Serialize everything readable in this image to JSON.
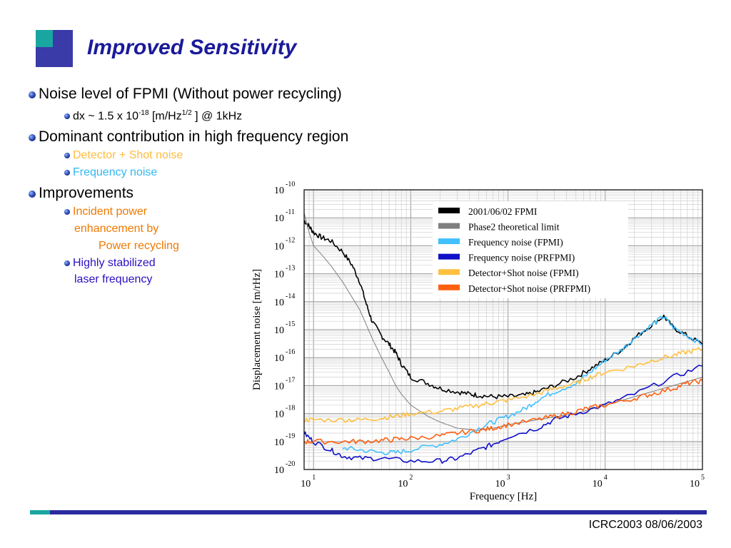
{
  "slide": {
    "title": "Improved Sensitivity",
    "footer": "ICRC2003 08/06/2003",
    "colors": {
      "title": "#1a1a9a",
      "logo_blue": "#3a3aa8",
      "logo_teal": "#1aa6a0",
      "orange_text": "#f07800",
      "cyan_text": "#28b4f0",
      "purple_text": "#2a10c0"
    }
  },
  "bullets": {
    "b1": "Noise level of FPMI (Without power recycling)",
    "b1_sub_pre": "dx ~ 1.5 x 10",
    "b1_sub_exp1": "-18",
    "b1_sub_mid": " [m/Hz",
    "b1_sub_exp2": "1/2",
    "b1_sub_post": " ] @ 1kHz",
    "b2": "Dominant contribution in high frequency region",
    "b2_sub1": "Detector + Shot noise",
    "b2_sub2": "Frequency noise",
    "b3": "Improvements",
    "b3_sub1_line1": "Incident power",
    "b3_sub1_line2": "enhancement by",
    "b3_sub1_line3": "Power recycling",
    "b3_sub2_line1": "Highly stabilized",
    "b3_sub2_line2": "laser frequency"
  },
  "chart_data": {
    "type": "line",
    "xscale": "log",
    "yscale": "log",
    "xlabel": "Frequency [Hz]",
    "ylabel": "Displacement noise [m/rHz]",
    "xlim": [
      8,
      100000
    ],
    "ylim": [
      1e-20,
      1e-10
    ],
    "x_ticks": [
      {
        "value": 10,
        "mantissa": "10",
        "exp": "1"
      },
      {
        "value": 100,
        "mantissa": "10",
        "exp": "2"
      },
      {
        "value": 1000,
        "mantissa": "10",
        "exp": "3"
      },
      {
        "value": 10000,
        "mantissa": "10",
        "exp": "4"
      },
      {
        "value": 100000,
        "mantissa": "10",
        "exp": "5"
      }
    ],
    "y_ticks": [
      {
        "value": 1e-10,
        "mantissa": "10",
        "exp": "-10"
      },
      {
        "value": 1e-11,
        "mantissa": "10",
        "exp": "-11"
      },
      {
        "value": 1e-12,
        "mantissa": "10",
        "exp": "-12"
      },
      {
        "value": 1e-13,
        "mantissa": "10",
        "exp": "-13"
      },
      {
        "value": 1e-14,
        "mantissa": "10",
        "exp": "-14"
      },
      {
        "value": 1e-15,
        "mantissa": "10",
        "exp": "-15"
      },
      {
        "value": 1e-16,
        "mantissa": "10",
        "exp": "-16"
      },
      {
        "value": 1e-17,
        "mantissa": "10",
        "exp": "-17"
      },
      {
        "value": 1e-18,
        "mantissa": "10",
        "exp": "-18"
      },
      {
        "value": 1e-19,
        "mantissa": "10",
        "exp": "-19"
      },
      {
        "value": 1e-20,
        "mantissa": "10",
        "exp": "-20"
      }
    ],
    "grid": true,
    "legend_position": "top-right",
    "series": [
      {
        "name": "2001/06/02 FPMI",
        "color": "#000000",
        "points": [
          [
            8,
            8e-12
          ],
          [
            9,
            5e-12
          ],
          [
            10,
            3e-12
          ],
          [
            12,
            2e-12
          ],
          [
            15,
            1.5e-12
          ],
          [
            20,
            6e-13
          ],
          [
            25,
            2e-13
          ],
          [
            30,
            5e-14
          ],
          [
            35,
            8e-15
          ],
          [
            40,
            2e-15
          ],
          [
            50,
            6e-16
          ],
          [
            60,
            3e-16
          ],
          [
            70,
            1.5e-16
          ],
          [
            80,
            6e-17
          ],
          [
            100,
            2e-17
          ],
          [
            150,
            1.2e-17
          ],
          [
            200,
            8e-18
          ],
          [
            300,
            6e-18
          ],
          [
            400,
            5e-18
          ],
          [
            500,
            4.5e-18
          ],
          [
            700,
            4e-18
          ],
          [
            1000,
            4e-18
          ],
          [
            1500,
            4.5e-18
          ],
          [
            2000,
            6e-18
          ],
          [
            3000,
            1e-17
          ],
          [
            5000,
            2e-17
          ],
          [
            7000,
            4e-17
          ],
          [
            10000,
            8e-17
          ],
          [
            15000,
            2e-16
          ],
          [
            20000,
            5e-16
          ],
          [
            30000,
            1.5e-15
          ],
          [
            40000,
            3e-15
          ],
          [
            50000,
            1.2e-15
          ],
          [
            70000,
            6e-16
          ],
          [
            100000,
            3e-16
          ]
        ]
      },
      {
        "name": "Phase2 theoretical limit",
        "color": "#7f7f7f",
        "points": [
          [
            8,
            1.5e-11
          ],
          [
            9,
            3e-12
          ],
          [
            10,
            1e-12
          ],
          [
            12,
            5e-13
          ],
          [
            15,
            2e-13
          ],
          [
            20,
            5e-14
          ],
          [
            30,
            5e-15
          ],
          [
            40,
            5e-16
          ],
          [
            50,
            1e-16
          ],
          [
            60,
            3e-17
          ],
          [
            70,
            1e-17
          ],
          [
            80,
            5e-18
          ],
          [
            100,
            2e-18
          ],
          [
            150,
            8e-19
          ],
          [
            200,
            5e-19
          ],
          [
            300,
            3e-19
          ],
          [
            500,
            2.5e-19
          ],
          [
            700,
            3e-19
          ],
          [
            1000,
            4e-19
          ],
          [
            2000,
            6e-19
          ],
          [
            5000,
            1e-18
          ],
          [
            10000,
            2e-18
          ],
          [
            20000,
            4e-18
          ],
          [
            50000,
            1e-17
          ],
          [
            100000,
            2e-17
          ]
        ]
      },
      {
        "name": "Frequency noise (FPMI)",
        "color": "#40c0ff",
        "points": [
          [
            20,
            6e-20
          ],
          [
            30,
            5e-20
          ],
          [
            50,
            4e-20
          ],
          [
            70,
            4e-20
          ],
          [
            100,
            5e-20
          ],
          [
            200,
            8e-20
          ],
          [
            300,
            1.2e-19
          ],
          [
            500,
            3e-19
          ],
          [
            700,
            5e-19
          ],
          [
            1000,
            8e-19
          ],
          [
            1500,
            1.5e-18
          ],
          [
            2000,
            3e-18
          ],
          [
            3000,
            6e-18
          ],
          [
            5000,
            1.2e-17
          ],
          [
            7000,
            3e-17
          ],
          [
            10000,
            8e-17
          ],
          [
            15000,
            2e-16
          ],
          [
            20000,
            5e-16
          ],
          [
            30000,
            1.5e-15
          ],
          [
            40000,
            3e-15
          ],
          [
            50000,
            1.2e-15
          ],
          [
            70000,
            6e-16
          ],
          [
            100000,
            3e-16
          ]
        ]
      },
      {
        "name": "Frequency noise (PRFPMI)",
        "color": "#1010c8",
        "points": [
          [
            8,
            2e-19
          ],
          [
            10,
            1e-19
          ],
          [
            15,
            5e-20
          ],
          [
            20,
            3e-20
          ],
          [
            30,
            2.5e-20
          ],
          [
            50,
            2.5e-20
          ],
          [
            100,
            2e-20
          ],
          [
            200,
            2e-20
          ],
          [
            300,
            2.5e-20
          ],
          [
            500,
            5e-20
          ],
          [
            700,
            8e-20
          ],
          [
            1000,
            1.5e-19
          ],
          [
            2000,
            3e-19
          ],
          [
            3000,
            6e-19
          ],
          [
            5000,
            1e-18
          ],
          [
            10000,
            2e-18
          ],
          [
            20000,
            5e-18
          ],
          [
            50000,
            2e-17
          ],
          [
            100000,
            5e-17
          ]
        ]
      },
      {
        "name": "Detector+Shot noise (FPMI)",
        "color": "#ffc040",
        "points": [
          [
            8,
            6e-19
          ],
          [
            10,
            6e-19
          ],
          [
            20,
            6e-19
          ],
          [
            30,
            6e-19
          ],
          [
            50,
            7e-19
          ],
          [
            70,
            8e-19
          ],
          [
            100,
            1e-18
          ],
          [
            200,
            1.2e-18
          ],
          [
            300,
            1.5e-18
          ],
          [
            500,
            2e-18
          ],
          [
            700,
            2.5e-18
          ],
          [
            1000,
            3e-18
          ],
          [
            2000,
            5e-18
          ],
          [
            3000,
            8e-18
          ],
          [
            5000,
            1.2e-17
          ],
          [
            7000,
            2e-17
          ],
          [
            10000,
            3e-17
          ],
          [
            20000,
            5e-17
          ],
          [
            30000,
            8e-17
          ],
          [
            50000,
            1.2e-16
          ],
          [
            70000,
            1.6e-16
          ],
          [
            100000,
            2e-16
          ]
        ]
      },
      {
        "name": "Detector+Shot noise (PRFPMI)",
        "color": "#ff6010",
        "points": [
          [
            8,
            1e-19
          ],
          [
            10,
            1e-19
          ],
          [
            20,
            1e-19
          ],
          [
            30,
            1e-19
          ],
          [
            50,
            1.1e-19
          ],
          [
            70,
            1.2e-19
          ],
          [
            100,
            1.3e-19
          ],
          [
            200,
            1.6e-19
          ],
          [
            300,
            2e-19
          ],
          [
            500,
            2.5e-19
          ],
          [
            700,
            3e-19
          ],
          [
            1000,
            4e-19
          ],
          [
            2000,
            6e-19
          ],
          [
            3000,
            8e-19
          ],
          [
            5000,
            1.2e-18
          ],
          [
            7000,
            1.6e-18
          ],
          [
            10000,
            2e-18
          ],
          [
            20000,
            3.5e-18
          ],
          [
            30000,
            5e-18
          ],
          [
            50000,
            8e-18
          ],
          [
            70000,
            1.2e-17
          ],
          [
            100000,
            1.5e-17
          ]
        ]
      }
    ]
  }
}
